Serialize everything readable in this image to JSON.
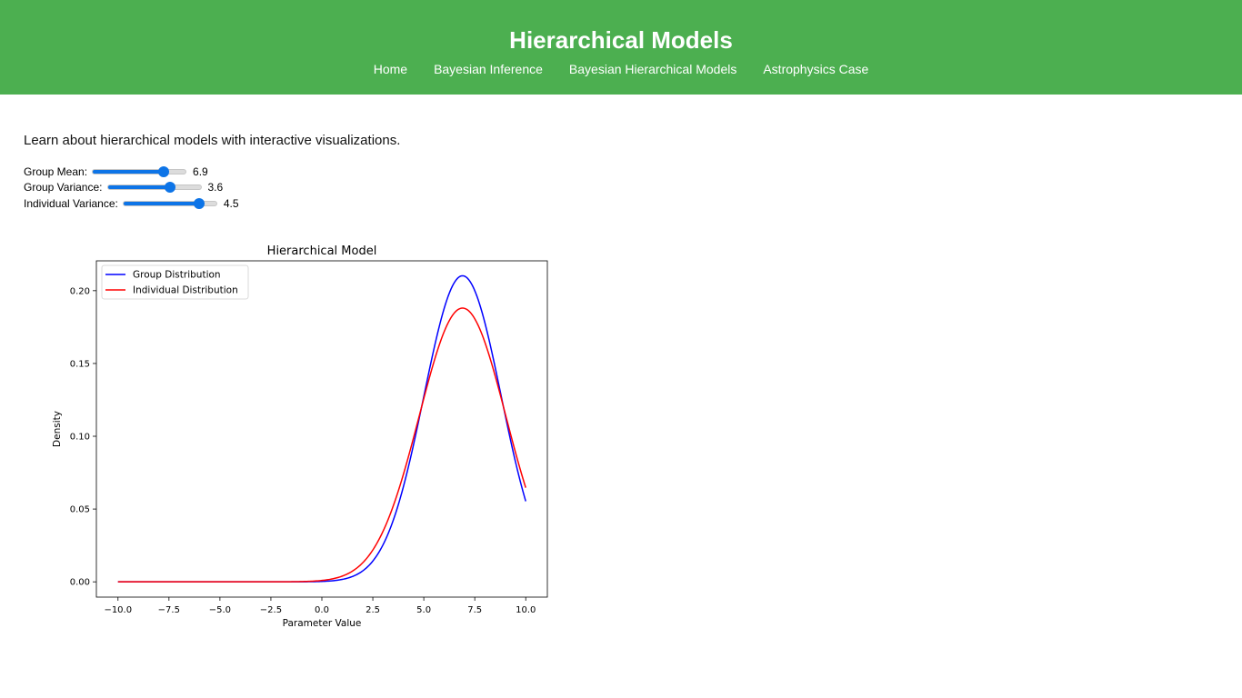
{
  "header": {
    "title": "Hierarchical Models",
    "nav": [
      "Home",
      "Bayesian Inference",
      "Bayesian Hierarchical Models",
      "Astrophysics Case"
    ]
  },
  "intro": "Learn about hierarchical models with interactive visualizations.",
  "sliders": [
    {
      "label": "Group Mean:",
      "value": "6.9",
      "min": -10,
      "max": 10,
      "step": 0.1,
      "position": 0.8
    },
    {
      "label": "Group Variance:",
      "value": "3.6",
      "min": 0,
      "max": 5,
      "step": 0.1,
      "position": 0.7
    },
    {
      "label": "Individual Variance:",
      "value": "4.5",
      "min": 0,
      "max": 5,
      "step": 0.1,
      "position": 0.85
    }
  ],
  "colors": {
    "header_bg": "#4caf50",
    "slider_accent": "#0d74e7",
    "group_line": "#0000ff",
    "individual_line": "#ff0000"
  },
  "chart_data": {
    "type": "line",
    "title": "Hierarchical Model",
    "xlabel": "Parameter Value",
    "ylabel": "Density",
    "xlim": [
      -11.06,
      11.06
    ],
    "ylim": [
      -0.0105,
      0.2205
    ],
    "xticks": [
      -10.0,
      -7.5,
      -5.0,
      -2.5,
      0.0,
      2.5,
      5.0,
      7.5,
      10.0
    ],
    "xtick_labels": [
      "−10.0",
      "−7.5",
      "−5.0",
      "−2.5",
      "0.0",
      "2.5",
      "5.0",
      "7.5",
      "10.0"
    ],
    "yticks": [
      0.0,
      0.05,
      0.1,
      0.15,
      0.2
    ],
    "ytick_labels": [
      "0.00",
      "0.05",
      "0.10",
      "0.15",
      "0.20"
    ],
    "legend_position": "top-left",
    "grid": false,
    "series": [
      {
        "name": "Group Distribution",
        "color": "#0000ff",
        "distribution": "normal",
        "mean": 6.9,
        "variance": 3.6,
        "x_range": [
          -10,
          10
        ]
      },
      {
        "name": "Individual Distribution",
        "color": "#ff0000",
        "distribution": "normal",
        "mean": 6.9,
        "variance": 4.5,
        "x_range": [
          -10,
          10
        ]
      }
    ]
  }
}
